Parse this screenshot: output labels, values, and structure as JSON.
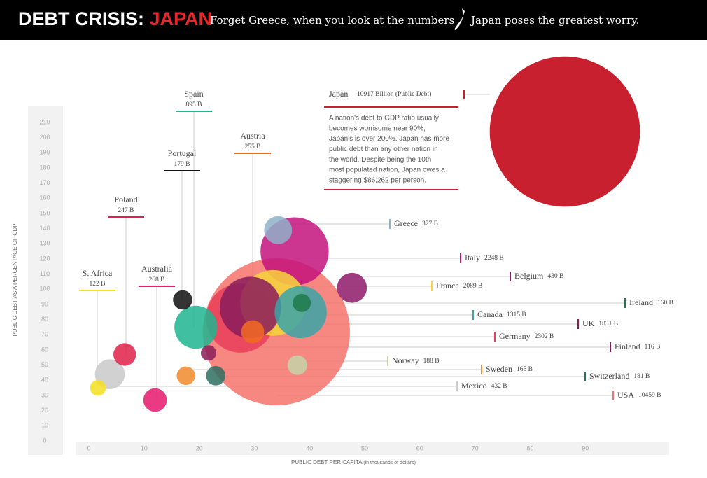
{
  "chart_data": {
    "type": "bubble",
    "title": "DEBT CRISIS: ",
    "title_highlight": "JAPAN",
    "subtitle": "Forget Greece, when you look at the numbers",
    "subtitle_end": "Japan poses the greatest worry.",
    "y_label": "PUBLIC DEBT AS A PERCENTAGE OF GDP",
    "x_label": "PUBLIC DEBT PER CAPITA",
    "x_label_unit": "(in thousands of dollars)",
    "xlim": [
      0,
      100
    ],
    "ylim": [
      0,
      210
    ],
    "xticks": [
      0,
      10,
      20,
      30,
      40,
      50,
      60,
      70,
      80,
      90
    ],
    "yticks": [
      0,
      10,
      20,
      30,
      40,
      50,
      60,
      70,
      80,
      90,
      100,
      110,
      120,
      130,
      140,
      150,
      160,
      170,
      180,
      190,
      200,
      210
    ],
    "categories": [
      "USA",
      "Japan",
      "Germany",
      "Italy",
      "France",
      "UK",
      "Canada",
      "Spain",
      "Mexico",
      "Belgium",
      "Greece",
      "Australia",
      "Austria",
      "Poland",
      "Norway",
      "Switzerland",
      "Portugal",
      "Sweden",
      "Ireland",
      "S. Africa",
      "Finland"
    ],
    "x": [
      34,
      86.3,
      27.5,
      37.3,
      33.4,
      29.3,
      38.4,
      19.4,
      3.8,
      47.7,
      34.3,
      12,
      29.7,
      6.5,
      37.8,
      23,
      17,
      17.6,
      38.6,
      1.65,
      21.7
    ],
    "values": [
      72,
      204,
      81,
      125,
      91,
      88,
      85,
      75,
      44,
      101,
      139,
      27,
      72,
      57,
      50,
      43,
      93,
      43,
      91,
      35,
      58
    ],
    "sizes": [
      10459,
      10917,
      2302,
      2248,
      2089,
      1831,
      1315,
      895,
      432,
      430,
      377,
      268,
      255,
      247,
      188,
      181,
      179,
      165,
      160,
      122,
      116
    ],
    "value_labels": [
      "10459 B",
      "10917 Billion (Public Debt)",
      "2302 B",
      "2248 B",
      "2089 B",
      "1831 B",
      "1315 B",
      "895 B",
      "432 B",
      "430 B",
      "377 B",
      "268 B",
      "255 B",
      "247 B",
      "188 B",
      "181 B",
      "179 B",
      "165 B",
      "160 B",
      "122 B",
      "116 B"
    ],
    "colors": [
      "#f4736b",
      "#c8202f",
      "#e83e5a",
      "#c4137c",
      "#f7d63c",
      "#8a1c5c",
      "#3aa5a8",
      "#1fb58f",
      "#c9c9c9",
      "#8e1a6a",
      "#8fb0c9",
      "#e8176e",
      "#f26b21",
      "#e0204a",
      "#c4d4a8",
      "#2d6e60",
      "#111111",
      "#f08a2a",
      "#1f7a4a",
      "#f5e11f",
      "#8b1e5a"
    ],
    "note": [
      "A nation's debt to GDP ratio usually",
      "becomes worrisome near 90%;",
      "Japan's is over 200%.  Japan has more",
      "public debt than any other nation in",
      "the world.  Despite being the 10th",
      "most populated nation, Japan owes a",
      "staggering $86,262 per person."
    ]
  }
}
